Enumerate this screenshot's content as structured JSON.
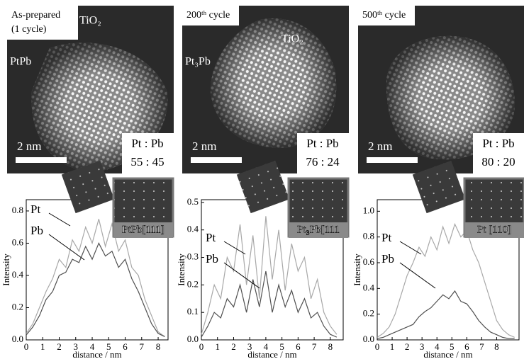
{
  "chart_data": [
    {
      "type": "line",
      "xlabel": "distance / nm",
      "ylabel": "Intensity",
      "micrograph": {
        "label": [
          "As-prepared",
          "(1 cycle)"
        ],
        "support": "TiO₂",
        "phase": "PtPb",
        "scale_bar": "2 nm",
        "ratio_title": "Pt : Pb",
        "ratio": "55 : 45",
        "fft_label": "PtPb[111]"
      },
      "x": [
        0,
        0.4,
        0.8,
        1.2,
        1.6,
        2.0,
        2.4,
        2.8,
        3.2,
        3.6,
        4.0,
        4.4,
        4.8,
        5.2,
        5.6,
        6.0,
        6.4,
        6.8,
        7.2,
        7.6,
        8.0,
        8.4
      ],
      "series": [
        {
          "name": "Pt",
          "color": "#a8a8a8",
          "values": [
            0.04,
            0.1,
            0.2,
            0.3,
            0.38,
            0.5,
            0.45,
            0.62,
            0.55,
            0.7,
            0.6,
            0.75,
            0.58,
            0.72,
            0.55,
            0.62,
            0.45,
            0.4,
            0.25,
            0.15,
            0.05,
            0.02
          ]
        },
        {
          "name": "Pb",
          "color": "#505050",
          "values": [
            0.03,
            0.08,
            0.15,
            0.25,
            0.3,
            0.4,
            0.42,
            0.5,
            0.48,
            0.58,
            0.5,
            0.6,
            0.52,
            0.55,
            0.45,
            0.5,
            0.38,
            0.3,
            0.2,
            0.1,
            0.04,
            0.02
          ]
        }
      ],
      "xlim": [
        0,
        8.6
      ],
      "ylim": [
        0,
        0.87
      ],
      "xticks": [
        0,
        1,
        2,
        3,
        4,
        5,
        6,
        7,
        8
      ],
      "yticks": [
        {
          "value": 0,
          "label": "0.0"
        },
        {
          "value": 0.2,
          "label": "0.2"
        },
        {
          "value": 0.4,
          "label": "0.4"
        },
        {
          "value": 0.6,
          "label": "0.6"
        },
        {
          "value": 0.8,
          "label": "0.8"
        }
      ]
    },
    {
      "type": "line",
      "xlabel": "distance / nm",
      "ylabel": "Intensity",
      "micrograph": {
        "label": [
          "200ᵗʰ cycle"
        ],
        "support": "TiO₂",
        "phase": "Pt₃Pb",
        "scale_bar": "2 nm",
        "ratio_title": "Pt : Pb",
        "ratio": "76 : 24",
        "fft_label": "Pt₃Pb[111"
      },
      "x": [
        0,
        0.4,
        0.8,
        1.2,
        1.6,
        2.0,
        2.4,
        2.8,
        3.2,
        3.6,
        4.0,
        4.4,
        4.8,
        5.2,
        5.6,
        6.0,
        6.4,
        6.8,
        7.2,
        7.6,
        8.0,
        8.4
      ],
      "series": [
        {
          "name": "Pt",
          "color": "#a8a8a8",
          "values": [
            0.02,
            0.1,
            0.2,
            0.15,
            0.3,
            0.25,
            0.42,
            0.2,
            0.38,
            0.15,
            0.45,
            0.22,
            0.4,
            0.18,
            0.35,
            0.25,
            0.3,
            0.15,
            0.22,
            0.1,
            0.05,
            0.02
          ]
        },
        {
          "name": "Pb",
          "color": "#505050",
          "values": [
            0.01,
            0.05,
            0.1,
            0.08,
            0.15,
            0.12,
            0.2,
            0.1,
            0.22,
            0.12,
            0.25,
            0.1,
            0.2,
            0.12,
            0.18,
            0.1,
            0.15,
            0.08,
            0.1,
            0.05,
            0.02,
            0.01
          ]
        }
      ],
      "xlim": [
        0,
        8.8
      ],
      "ylim": [
        0,
        0.51
      ],
      "xticks": [
        0,
        1,
        2,
        3,
        4,
        5,
        6,
        7,
        8
      ],
      "yticks": [
        {
          "value": 0,
          "label": "0.0"
        },
        {
          "value": 0.1,
          "label": "0.1"
        },
        {
          "value": 0.2,
          "label": "0.2"
        },
        {
          "value": 0.3,
          "label": "0.3"
        },
        {
          "value": 0.4,
          "label": "0.4"
        },
        {
          "value": 0.5,
          "label": "0.5"
        }
      ]
    },
    {
      "type": "line",
      "xlabel": "distance / nm",
      "ylabel": "Intensity",
      "micrograph": {
        "label": [
          "500ᵗʰ cycle"
        ],
        "scale_bar": "2 nm",
        "ratio_title": "Pt : Pb",
        "ratio": "80 : 20",
        "fft_label": "Pt [110]"
      },
      "x": [
        0,
        0.4,
        0.8,
        1.2,
        1.6,
        2.0,
        2.4,
        2.8,
        3.2,
        3.6,
        4.0,
        4.4,
        4.8,
        5.2,
        5.6,
        6.0,
        6.4,
        6.8,
        7.2,
        7.6,
        8.0,
        8.4,
        8.8,
        9.2
      ],
      "series": [
        {
          "name": "Pt",
          "color": "#a8a8a8",
          "values": [
            0.02,
            0.05,
            0.1,
            0.2,
            0.35,
            0.5,
            0.6,
            0.72,
            0.65,
            0.8,
            0.7,
            0.88,
            0.75,
            0.9,
            0.8,
            0.85,
            0.7,
            0.6,
            0.45,
            0.3,
            0.15,
            0.08,
            0.04,
            0.02
          ]
        },
        {
          "name": "Pb",
          "color": "#505050",
          "values": [
            0.01,
            0.02,
            0.04,
            0.06,
            0.08,
            0.1,
            0.12,
            0.18,
            0.22,
            0.25,
            0.3,
            0.35,
            0.32,
            0.38,
            0.3,
            0.28,
            0.22,
            0.15,
            0.1,
            0.06,
            0.04,
            0.02,
            0.01,
            0.01
          ]
        }
      ],
      "xlim": [
        0,
        9.5
      ],
      "ylim": [
        0,
        1.09
      ],
      "xticks": [
        0,
        1,
        2,
        3,
        4,
        5,
        6,
        7,
        8
      ],
      "yticks": [
        {
          "value": 0,
          "label": "0.0"
        },
        {
          "value": 0.2,
          "label": "0.2"
        },
        {
          "value": 0.4,
          "label": "0.4"
        },
        {
          "value": 0.6,
          "label": "0.6"
        },
        {
          "value": 0.8,
          "label": "0.8"
        },
        {
          "value": 1,
          "label": "1.0"
        }
      ]
    }
  ]
}
